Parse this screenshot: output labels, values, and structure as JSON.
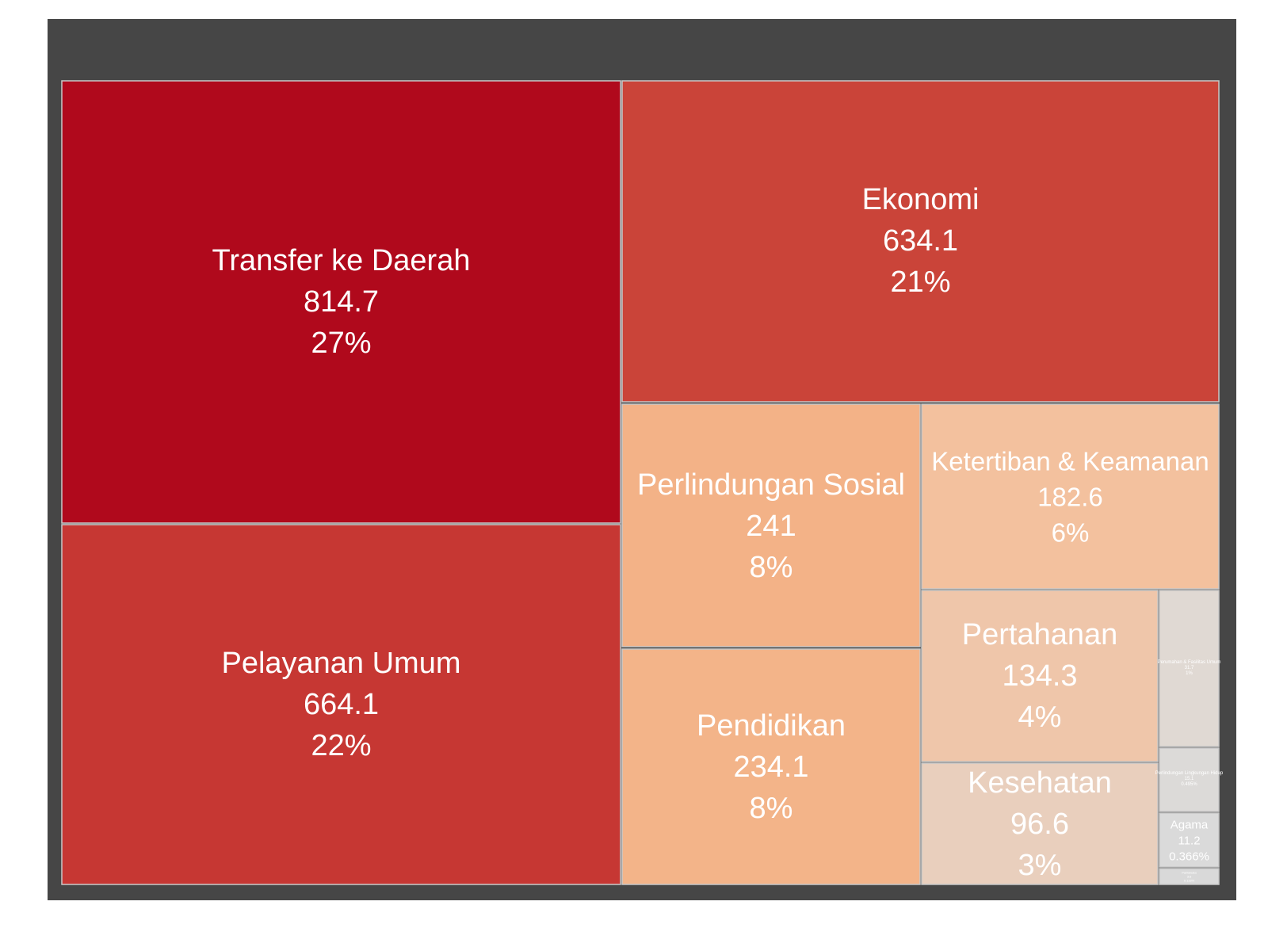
{
  "chart_data": {
    "type": "treemap",
    "title": "",
    "background_color": "#464646",
    "border_color": "#c8c8c8",
    "items": [
      {
        "label": "Transfer ke Daerah",
        "value": "814.7",
        "percent": "27%",
        "color": "#b0091c"
      },
      {
        "label": "Pelayanan Umum",
        "value": "664.1",
        "percent": "22%",
        "color": "#c63733"
      },
      {
        "label": "Ekonomi",
        "value": "634.1",
        "percent": "21%",
        "color": "#ca4439"
      },
      {
        "label": "Perlindungan Sosial",
        "value": "241",
        "percent": "8%",
        "color": "#f3b287"
      },
      {
        "label": "Pendidikan",
        "value": "234.1",
        "percent": "8%",
        "color": "#f3b489"
      },
      {
        "label": "Ketertiban & Keamanan",
        "value": "182.6",
        "percent": "6%",
        "color": "#f3c19e"
      },
      {
        "label": "Pertahanan",
        "value": "134.3",
        "percent": "4%",
        "color": "#efc6aa"
      },
      {
        "label": "Kesehatan",
        "value": "96.6",
        "percent": "3%",
        "color": "#e9cfbd"
      },
      {
        "label": "Perumahan & Fasilitas Umum",
        "value": "31.7",
        "percent": "1%",
        "color": "#e0d9d3"
      },
      {
        "label": "Perlindungan Lingkungan Hidup",
        "value": "15.1",
        "percent": "0.495%",
        "color": "#dcdad8"
      },
      {
        "label": "Agama",
        "value": "11.2",
        "percent": "0.366%",
        "color": "#dadada"
      },
      {
        "label": "Pariwisata",
        "value": "3.6",
        "percent": "0.118%",
        "color": "#d9d9d9"
      }
    ]
  }
}
